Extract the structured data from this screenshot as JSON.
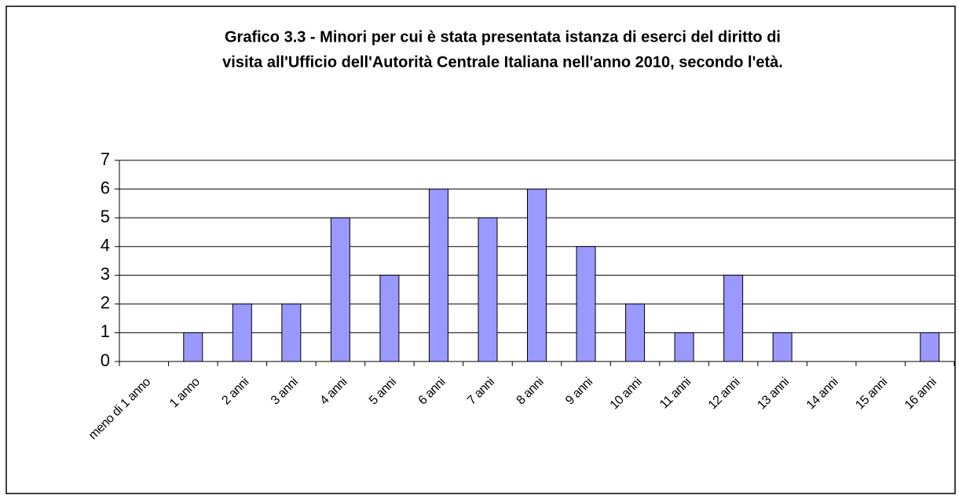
{
  "chart_data": {
    "type": "bar",
    "title": [
      "Grafico 3.3 - Minori per cui è stata presentata istanza di eserci del diritto di",
      "visita all'Ufficio dell'Autorità Centrale Italiana nell'anno 2010, secondo l'età."
    ],
    "categories": [
      "meno di 1 anno",
      "1 anno",
      "2 anni",
      "3 anni",
      "4 anni",
      "5 anni",
      "6 anni",
      "7 anni",
      "8 anni",
      "9 anni",
      "10 anni",
      "11 anni",
      "12 anni",
      "13 anni",
      "14 anni",
      "15 anni",
      "16 anni"
    ],
    "values": [
      0,
      1,
      2,
      2,
      5,
      3,
      6,
      5,
      6,
      4,
      2,
      1,
      3,
      1,
      0,
      0,
      1
    ],
    "color": "#9999ff",
    "ylim": [
      0,
      7
    ],
    "yticks": [
      0,
      1,
      2,
      3,
      4,
      5,
      6,
      7
    ],
    "grid": true
  }
}
